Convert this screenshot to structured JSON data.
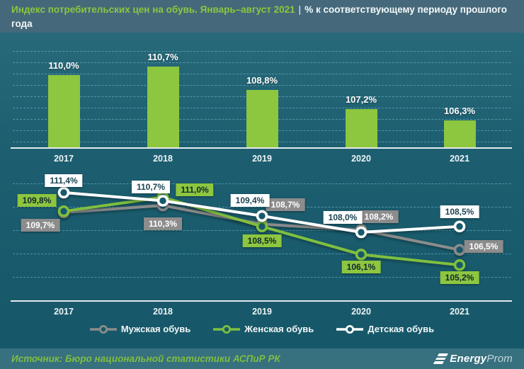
{
  "header": {
    "title_highlight": "Индекс потребительских цен на обувь. Январь–август 2021",
    "separator": "|",
    "title_rest": "% к соответствующему периоду прошлого года"
  },
  "colors": {
    "background_teal": "#1d5f70",
    "header_band": "#45697a",
    "footer_band": "#37707f",
    "bar_green": "#8dc63f",
    "series_gray": "#8c8c8c",
    "series_green": "#7fbf3f",
    "series_white": "#ffffff",
    "source_green": "#7fbe41"
  },
  "chart_data": [
    {
      "type": "bar",
      "title": "Индекс потребительских цен на обувь, % к соответствующему периоду прошлого года",
      "categories": [
        "2017",
        "2018",
        "2019",
        "2020",
        "2021"
      ],
      "values": [
        110.0,
        110.7,
        108.8,
        107.2,
        106.3
      ],
      "labels": [
        "110,0%",
        "110,7%",
        "108,8%",
        "107,2%",
        "106,3%"
      ],
      "bar_color": "#8dc63f",
      "xlabel": "",
      "ylabel": "",
      "ylim": [
        104,
        112
      ],
      "grid": true,
      "legend_position": "none"
    },
    {
      "type": "line",
      "title": "Индекс потребительских цен по видам обуви, % к соответствующему периоду прошлого года",
      "categories": [
        "2017",
        "2018",
        "2019",
        "2020",
        "2021"
      ],
      "series": [
        {
          "name": "Мужская обувь",
          "color": "#8c8c8c",
          "values": [
            109.7,
            110.3,
            108.7,
            108.2,
            106.5
          ],
          "labels": [
            "109,7%",
            "110,3%",
            "108,7%",
            "108,2%",
            "106,5%"
          ]
        },
        {
          "name": "Женская обувь",
          "color": "#7fbf3f",
          "values": [
            109.8,
            111.0,
            108.5,
            106.1,
            105.2
          ],
          "labels": [
            "109,8%",
            "111,0%",
            "108,5%",
            "106,1%",
            "105,2%"
          ]
        },
        {
          "name": "Детская обувь",
          "color": "#ffffff",
          "values": [
            111.4,
            110.7,
            109.4,
            108.0,
            108.5
          ],
          "labels": [
            "111,4%",
            "110,7%",
            "109,4%",
            "108,0%",
            "108,5%"
          ]
        }
      ],
      "xlabel": "",
      "ylabel": "",
      "ylim": [
        102,
        112.5
      ],
      "grid": true,
      "legend_position": "bottom"
    }
  ],
  "footer": {
    "source": "Источник: Бюро национальной статистики АСПиР РК",
    "logo": {
      "bold": "Energy",
      "light": "Prom"
    }
  }
}
